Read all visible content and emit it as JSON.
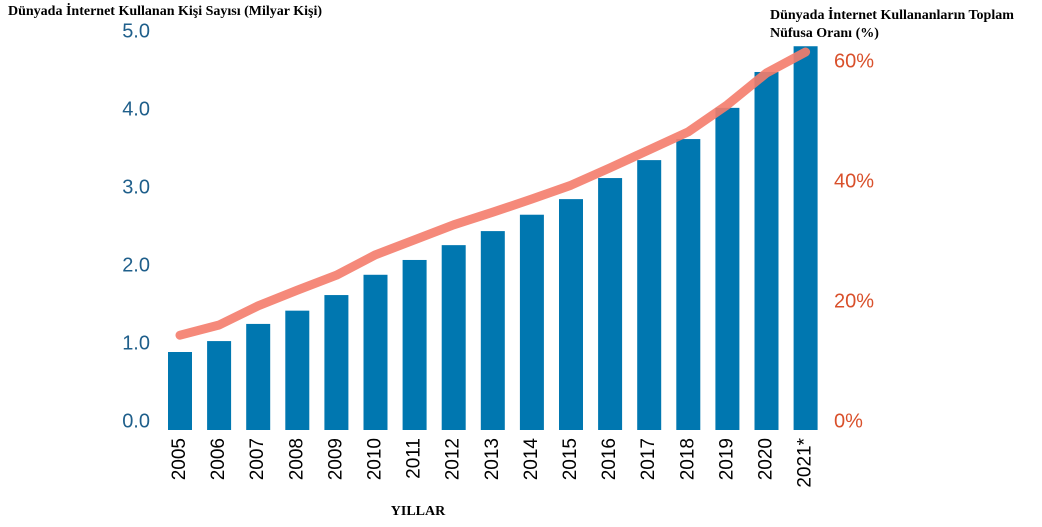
{
  "chart_data": {
    "type": "bar-line",
    "title": "Dünyada İnternet Kullanan Kişi Sayısı (Milyar Kişi)",
    "y2label": [
      "Dünyada İnternet Kullananların Toplam",
      "Nüfusa Oranı (%)"
    ],
    "xlabel": "YILLAR",
    "categories": [
      "2005",
      "2006",
      "2007",
      "2008",
      "2009",
      "2010",
      "2011",
      "2012",
      "2013",
      "2014",
      "2015",
      "2016",
      "2017",
      "2018",
      "2019",
      "2020",
      "2021*"
    ],
    "series": [
      {
        "type": "bar",
        "color": "#0077b0",
        "values": [
          1.0,
          1.14,
          1.36,
          1.53,
          1.73,
          1.99,
          2.18,
          2.37,
          2.55,
          2.76,
          2.96,
          3.23,
          3.46,
          3.73,
          4.13,
          4.59,
          4.92
        ]
      },
      {
        "type": "line",
        "color": "#f47c6c",
        "axis": "y2",
        "values": [
          15.8,
          17.5,
          20.7,
          23.3,
          25.8,
          29.2,
          31.7,
          34.2,
          36.3,
          38.5,
          40.8,
          43.7,
          46.7,
          49.7,
          54.2,
          59.5,
          63
        ]
      }
    ],
    "ylim": [
      0,
      5
    ],
    "yticks": [
      {
        "value": 0,
        "label": "0.0"
      },
      {
        "value": 1,
        "label": "1.0"
      },
      {
        "value": 2,
        "label": "2.0"
      },
      {
        "value": 3,
        "label": "3.0"
      },
      {
        "value": 4,
        "label": "4.0"
      },
      {
        "value": 5,
        "label": "5.0"
      }
    ],
    "y2lim": [
      0,
      65
    ],
    "y2ticks": [
      {
        "value": 0,
        "label": "0%"
      },
      {
        "value": 20,
        "label": "20%"
      },
      {
        "value": 40,
        "label": "40%"
      },
      {
        "value": 60,
        "label": "60%"
      }
    ],
    "ytick_color": "#1f5f8b",
    "y2tick_color": "#d9502b"
  }
}
